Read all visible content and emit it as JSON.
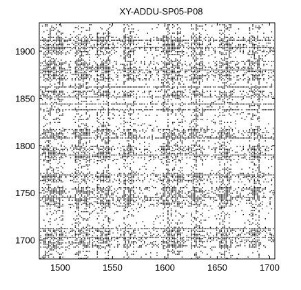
{
  "chart_data": {
    "type": "scatter",
    "title": "XY-ADDU-SP05-P08",
    "xlabel": "",
    "ylabel": "",
    "xlim": [
      1480,
      1705
    ],
    "ylim": [
      1680,
      1930
    ],
    "x_ticks": [
      1500,
      1550,
      1600,
      1650,
      1700
    ],
    "y_ticks": [
      1700,
      1750,
      1800,
      1850,
      1900
    ],
    "x_tick_labels": [
      "1500",
      "1550",
      "1600",
      "1650",
      "1700"
    ],
    "y_tick_labels": [
      "1700",
      "1750",
      "1800",
      "1850",
      "1900"
    ],
    "grid": false,
    "legend": "none",
    "marker_color": "#000000",
    "description_of_marks": "dense recurrence-plot style point cloud",
    "dense_column_bands": [
      [
        1483,
        1503
      ],
      [
        1514,
        1528
      ],
      [
        1535,
        1548
      ],
      [
        1560,
        1570
      ],
      [
        1598,
        1616
      ],
      [
        1624,
        1636
      ],
      [
        1651,
        1663
      ],
      [
        1680,
        1690
      ]
    ],
    "dense_row_bands": [
      [
        1693,
        1712
      ],
      [
        1736,
        1756
      ],
      [
        1762,
        1772
      ],
      [
        1786,
        1800
      ],
      [
        1808,
        1818
      ],
      [
        1852,
        1858
      ],
      [
        1870,
        1890
      ],
      [
        1896,
        1916
      ]
    ],
    "line_rows": [
      1703,
      1712,
      1746,
      1770,
      1790,
      1808,
      1838,
      1845,
      1852,
      1862,
      1880,
      1905,
      1912
    ],
    "line_columns": [
      1490,
      1517,
      1545,
      1603,
      1630,
      1657,
      1690
    ]
  }
}
